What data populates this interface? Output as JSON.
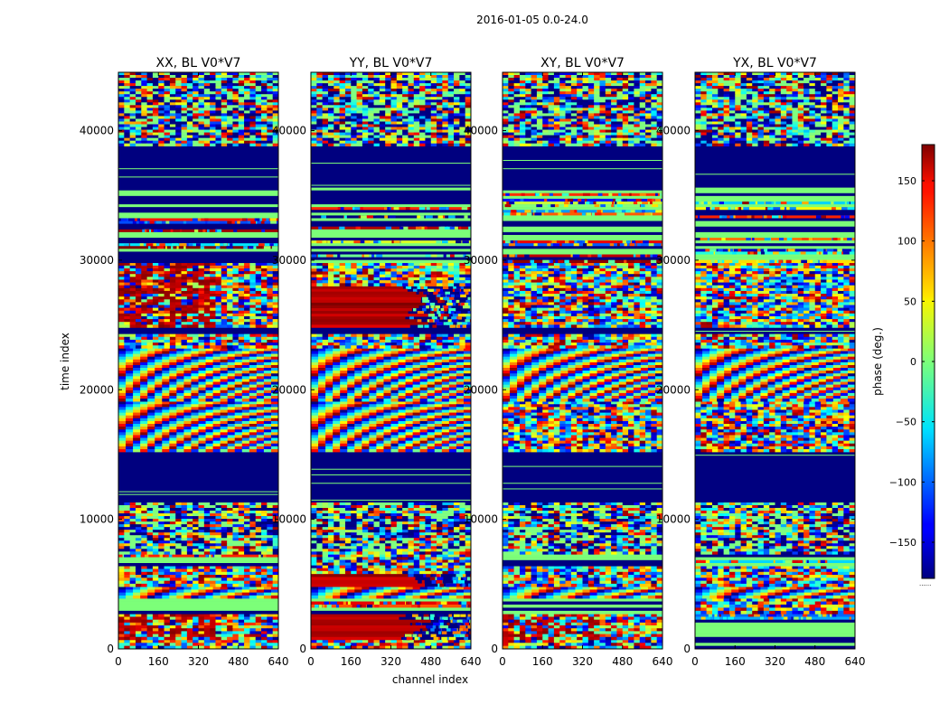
{
  "figure": {
    "suptitle": "2016-01-05 0.0-24.0",
    "xlabel": "channel index",
    "ylabel": "time index"
  },
  "colormap": {
    "name": "jet",
    "low": "#00007f",
    "high": "#7f0000"
  },
  "chart_data": [
    {
      "type": "heatmap",
      "title": "XX, BL V0*V7",
      "xlim": [
        0,
        640
      ],
      "ylim": [
        0,
        44500
      ],
      "xticks": [
        0,
        160,
        320,
        480,
        640
      ],
      "yticks": [
        0,
        10000,
        20000,
        30000,
        40000
      ],
      "row_bands": [
        {
          "y": [
            0,
            700
          ],
          "pattern": "noise"
        },
        {
          "y": [
            700,
            2700
          ],
          "pattern": "noise-red-left"
        },
        {
          "y": [
            2700,
            3900
          ],
          "pattern": "stripe-green"
        },
        {
          "y": [
            3900,
            4800
          ],
          "pattern": "fringe"
        },
        {
          "y": [
            4800,
            6400
          ],
          "pattern": "noise"
        },
        {
          "y": [
            6400,
            7300
          ],
          "pattern": "stripe-green"
        },
        {
          "y": [
            7300,
            11300
          ],
          "pattern": "mixed"
        },
        {
          "y": [
            11300,
            15200
          ],
          "pattern": "flagged"
        },
        {
          "y": [
            15200,
            19100
          ],
          "pattern": "fringe"
        },
        {
          "y": [
            19100,
            23200
          ],
          "pattern": "fringe"
        },
        {
          "y": [
            23200,
            24300
          ],
          "pattern": "noise"
        },
        {
          "y": [
            24300,
            24800
          ],
          "pattern": "flagged"
        },
        {
          "y": [
            24800,
            29800
          ],
          "pattern": "noise-red-left"
        },
        {
          "y": [
            29800,
            35600
          ],
          "pattern": "stripe-green"
        },
        {
          "y": [
            35600,
            38800
          ],
          "pattern": "flagged"
        },
        {
          "y": [
            38800,
            44500
          ],
          "pattern": "mixed"
        }
      ]
    },
    {
      "type": "heatmap",
      "title": "YY, BL V0*V7",
      "xlim": [
        0,
        640
      ],
      "ylim": [
        0,
        44500
      ],
      "xticks": [
        0,
        160,
        320,
        480,
        640
      ],
      "yticks": [
        0,
        10000,
        20000,
        30000,
        40000
      ],
      "row_bands": [
        {
          "y": [
            0,
            700
          ],
          "pattern": "noise"
        },
        {
          "y": [
            700,
            2700
          ],
          "pattern": "red-block"
        },
        {
          "y": [
            2700,
            3900
          ],
          "pattern": "stripe-green"
        },
        {
          "y": [
            3900,
            4800
          ],
          "pattern": "fringe"
        },
        {
          "y": [
            4800,
            5800
          ],
          "pattern": "red-block"
        },
        {
          "y": [
            5800,
            7300
          ],
          "pattern": "noise"
        },
        {
          "y": [
            7300,
            11300
          ],
          "pattern": "mixed"
        },
        {
          "y": [
            11300,
            15200
          ],
          "pattern": "flagged"
        },
        {
          "y": [
            15200,
            19100
          ],
          "pattern": "fringe"
        },
        {
          "y": [
            19100,
            23200
          ],
          "pattern": "fringe"
        },
        {
          "y": [
            23200,
            24300
          ],
          "pattern": "noise"
        },
        {
          "y": [
            24300,
            24800
          ],
          "pattern": "flagged"
        },
        {
          "y": [
            24800,
            28000
          ],
          "pattern": "red-block"
        },
        {
          "y": [
            28000,
            29800
          ],
          "pattern": "noise"
        },
        {
          "y": [
            29800,
            35600
          ],
          "pattern": "stripe-green"
        },
        {
          "y": [
            35600,
            38800
          ],
          "pattern": "flagged"
        },
        {
          "y": [
            38800,
            44500
          ],
          "pattern": "mixed"
        }
      ]
    },
    {
      "type": "heatmap",
      "title": "XY, BL V0*V7",
      "xlim": [
        0,
        640
      ],
      "ylim": [
        0,
        44500
      ],
      "xticks": [
        0,
        160,
        320,
        480,
        640
      ],
      "yticks": [
        0,
        10000,
        20000,
        30000,
        40000
      ],
      "row_bands": [
        {
          "y": [
            0,
            700
          ],
          "pattern": "noise"
        },
        {
          "y": [
            700,
            2700
          ],
          "pattern": "noise-red-left"
        },
        {
          "y": [
            2700,
            3900
          ],
          "pattern": "stripe-green"
        },
        {
          "y": [
            3900,
            4800
          ],
          "pattern": "fringe"
        },
        {
          "y": [
            4800,
            6400
          ],
          "pattern": "noise"
        },
        {
          "y": [
            6400,
            7300
          ],
          "pattern": "stripe-green"
        },
        {
          "y": [
            7300,
            11300
          ],
          "pattern": "mixed"
        },
        {
          "y": [
            11300,
            15200
          ],
          "pattern": "flagged"
        },
        {
          "y": [
            15200,
            19100
          ],
          "pattern": "noise"
        },
        {
          "y": [
            19100,
            23200
          ],
          "pattern": "fringe"
        },
        {
          "y": [
            23200,
            24300
          ],
          "pattern": "noise"
        },
        {
          "y": [
            24300,
            24800
          ],
          "pattern": "flagged"
        },
        {
          "y": [
            24800,
            29800
          ],
          "pattern": "noise"
        },
        {
          "y": [
            29800,
            35600
          ],
          "pattern": "stripe-green"
        },
        {
          "y": [
            35600,
            38800
          ],
          "pattern": "flagged"
        },
        {
          "y": [
            38800,
            44500
          ],
          "pattern": "mixed"
        }
      ]
    },
    {
      "type": "heatmap",
      "title": "YX, BL V0*V7",
      "xlim": [
        0,
        640
      ],
      "ylim": [
        0,
        44500
      ],
      "xticks": [
        0,
        160,
        320,
        480,
        640
      ],
      "yticks": [
        0,
        10000,
        20000,
        30000,
        40000
      ],
      "row_bands": [
        {
          "y": [
            0,
            700
          ],
          "pattern": "stripe-green"
        },
        {
          "y": [
            700,
            2700
          ],
          "pattern": "stripe-green"
        },
        {
          "y": [
            2700,
            3900
          ],
          "pattern": "noise"
        },
        {
          "y": [
            3900,
            4800
          ],
          "pattern": "fringe"
        },
        {
          "y": [
            4800,
            6400
          ],
          "pattern": "noise"
        },
        {
          "y": [
            6400,
            7300
          ],
          "pattern": "stripe-green"
        },
        {
          "y": [
            7300,
            11300
          ],
          "pattern": "mixed"
        },
        {
          "y": [
            11300,
            15200
          ],
          "pattern": "flagged"
        },
        {
          "y": [
            15200,
            19100
          ],
          "pattern": "noise"
        },
        {
          "y": [
            19100,
            23200
          ],
          "pattern": "fringe"
        },
        {
          "y": [
            23200,
            24300
          ],
          "pattern": "noise"
        },
        {
          "y": [
            24300,
            24800
          ],
          "pattern": "flagged"
        },
        {
          "y": [
            24800,
            29800
          ],
          "pattern": "noise"
        },
        {
          "y": [
            29800,
            35600
          ],
          "pattern": "stripe-green"
        },
        {
          "y": [
            35600,
            38800
          ],
          "pattern": "flagged"
        },
        {
          "y": [
            38800,
            44500
          ],
          "pattern": "mixed"
        }
      ]
    }
  ],
  "colorbar": {
    "label": "phase (deg.)",
    "range": [
      -180,
      180
    ],
    "ticks": [
      -150,
      -100,
      -50,
      0,
      50,
      100,
      150
    ],
    "tick_labels": [
      "−150",
      "−100",
      "−50",
      "0",
      "50",
      "100",
      "150"
    ],
    "offset_text": "......"
  }
}
